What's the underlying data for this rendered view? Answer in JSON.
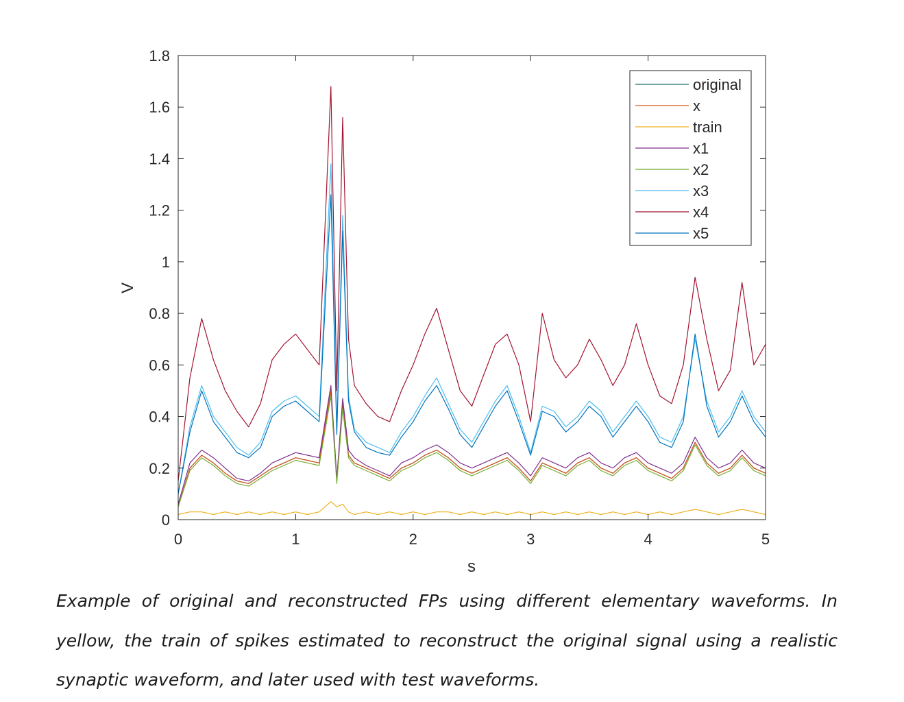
{
  "chart_data": {
    "type": "line",
    "xlabel": "s",
    "ylabel": "V",
    "xlim": [
      0,
      5
    ],
    "ylim": [
      0,
      1.8
    ],
    "xticks": [
      0,
      1,
      2,
      3,
      4,
      5
    ],
    "xtick_labels": [
      "0",
      "1",
      "2",
      "3",
      "4",
      "5"
    ],
    "yticks": [
      0,
      0.2,
      0.4,
      0.6,
      0.8,
      1,
      1.2,
      1.4,
      1.6,
      1.8
    ],
    "ytick_labels": [
      "0",
      "0.2",
      "0.4",
      "0.6",
      "0.8",
      "1",
      "1.2",
      "1.4",
      "1.6",
      "1.8"
    ],
    "legend_position": "top-right",
    "grid": false,
    "x": [
      0,
      0.1,
      0.2,
      0.3,
      0.4,
      0.5,
      0.6,
      0.7,
      0.8,
      0.9,
      1.0,
      1.1,
      1.2,
      1.3,
      1.35,
      1.4,
      1.45,
      1.5,
      1.6,
      1.7,
      1.8,
      1.9,
      2.0,
      2.1,
      2.2,
      2.3,
      2.4,
      2.5,
      2.6,
      2.7,
      2.8,
      2.9,
      3.0,
      3.1,
      3.2,
      3.3,
      3.4,
      3.5,
      3.6,
      3.7,
      3.8,
      3.9,
      4.0,
      4.1,
      4.2,
      4.3,
      4.4,
      4.5,
      4.6,
      4.7,
      4.8,
      4.9,
      5.0
    ],
    "series": [
      {
        "name": "original",
        "color": "#1f6f6f",
        "values": [
          0.05,
          0.2,
          0.25,
          0.22,
          0.18,
          0.15,
          0.14,
          0.17,
          0.2,
          0.22,
          0.24,
          0.23,
          0.22,
          0.5,
          0.15,
          0.45,
          0.25,
          0.22,
          0.2,
          0.18,
          0.16,
          0.2,
          0.22,
          0.25,
          0.27,
          0.24,
          0.2,
          0.18,
          0.2,
          0.22,
          0.24,
          0.2,
          0.15,
          0.22,
          0.2,
          0.18,
          0.22,
          0.24,
          0.2,
          0.18,
          0.22,
          0.24,
          0.2,
          0.18,
          0.16,
          0.2,
          0.3,
          0.22,
          0.18,
          0.2,
          0.25,
          0.2,
          0.18
        ]
      },
      {
        "name": "x",
        "color": "#d95319",
        "values": [
          0.05,
          0.2,
          0.25,
          0.22,
          0.18,
          0.15,
          0.14,
          0.17,
          0.2,
          0.22,
          0.24,
          0.23,
          0.22,
          0.5,
          0.15,
          0.45,
          0.25,
          0.22,
          0.2,
          0.18,
          0.16,
          0.2,
          0.22,
          0.25,
          0.27,
          0.24,
          0.2,
          0.18,
          0.2,
          0.22,
          0.24,
          0.2,
          0.15,
          0.22,
          0.2,
          0.18,
          0.22,
          0.24,
          0.2,
          0.18,
          0.22,
          0.24,
          0.2,
          0.18,
          0.16,
          0.2,
          0.3,
          0.22,
          0.18,
          0.2,
          0.25,
          0.2,
          0.18
        ]
      },
      {
        "name": "train",
        "color": "#edb120",
        "values": [
          0.02,
          0.03,
          0.03,
          0.02,
          0.03,
          0.02,
          0.03,
          0.02,
          0.03,
          0.02,
          0.03,
          0.02,
          0.03,
          0.07,
          0.05,
          0.06,
          0.03,
          0.02,
          0.03,
          0.02,
          0.03,
          0.02,
          0.03,
          0.02,
          0.03,
          0.03,
          0.02,
          0.03,
          0.02,
          0.03,
          0.02,
          0.03,
          0.02,
          0.03,
          0.02,
          0.03,
          0.02,
          0.03,
          0.02,
          0.03,
          0.02,
          0.03,
          0.02,
          0.03,
          0.02,
          0.03,
          0.04,
          0.03,
          0.02,
          0.03,
          0.04,
          0.03,
          0.02
        ]
      },
      {
        "name": "x1",
        "color": "#7e2f8e",
        "values": [
          0.06,
          0.22,
          0.27,
          0.24,
          0.2,
          0.16,
          0.15,
          0.18,
          0.22,
          0.24,
          0.26,
          0.25,
          0.24,
          0.52,
          0.16,
          0.47,
          0.27,
          0.24,
          0.21,
          0.19,
          0.17,
          0.22,
          0.24,
          0.27,
          0.29,
          0.26,
          0.22,
          0.2,
          0.22,
          0.24,
          0.26,
          0.22,
          0.17,
          0.24,
          0.22,
          0.2,
          0.24,
          0.26,
          0.22,
          0.2,
          0.24,
          0.26,
          0.22,
          0.2,
          0.18,
          0.22,
          0.32,
          0.24,
          0.2,
          0.22,
          0.27,
          0.22,
          0.2
        ]
      },
      {
        "name": "x2",
        "color": "#77ac30",
        "values": [
          0.05,
          0.19,
          0.24,
          0.21,
          0.17,
          0.14,
          0.13,
          0.16,
          0.19,
          0.21,
          0.23,
          0.22,
          0.21,
          0.48,
          0.14,
          0.43,
          0.24,
          0.21,
          0.19,
          0.17,
          0.15,
          0.19,
          0.21,
          0.24,
          0.26,
          0.23,
          0.19,
          0.17,
          0.19,
          0.21,
          0.23,
          0.19,
          0.14,
          0.21,
          0.19,
          0.17,
          0.21,
          0.23,
          0.19,
          0.17,
          0.21,
          0.23,
          0.19,
          0.17,
          0.15,
          0.19,
          0.29,
          0.21,
          0.17,
          0.19,
          0.24,
          0.19,
          0.17
        ]
      },
      {
        "name": "x3",
        "color": "#4dbeee",
        "values": [
          0.1,
          0.36,
          0.52,
          0.4,
          0.34,
          0.28,
          0.25,
          0.3,
          0.42,
          0.46,
          0.48,
          0.44,
          0.4,
          1.38,
          0.35,
          1.18,
          0.48,
          0.35,
          0.3,
          0.28,
          0.26,
          0.34,
          0.4,
          0.48,
          0.55,
          0.45,
          0.35,
          0.3,
          0.38,
          0.46,
          0.52,
          0.4,
          0.26,
          0.44,
          0.42,
          0.36,
          0.4,
          0.46,
          0.42,
          0.34,
          0.4,
          0.46,
          0.4,
          0.32,
          0.3,
          0.4,
          0.7,
          0.46,
          0.34,
          0.4,
          0.5,
          0.4,
          0.34
        ]
      },
      {
        "name": "x4",
        "color": "#a2142f",
        "values": [
          0.15,
          0.55,
          0.78,
          0.62,
          0.5,
          0.42,
          0.36,
          0.45,
          0.62,
          0.68,
          0.72,
          0.66,
          0.6,
          1.68,
          0.5,
          1.56,
          0.7,
          0.52,
          0.45,
          0.4,
          0.38,
          0.5,
          0.6,
          0.72,
          0.82,
          0.66,
          0.5,
          0.44,
          0.56,
          0.68,
          0.72,
          0.6,
          0.38,
          0.8,
          0.62,
          0.55,
          0.6,
          0.7,
          0.62,
          0.52,
          0.6,
          0.76,
          0.6,
          0.48,
          0.45,
          0.6,
          0.94,
          0.7,
          0.5,
          0.58,
          0.92,
          0.6,
          0.68
        ]
      },
      {
        "name": "x5",
        "color": "#0072bd",
        "values": [
          0.1,
          0.34,
          0.5,
          0.38,
          0.32,
          0.26,
          0.24,
          0.28,
          0.4,
          0.44,
          0.46,
          0.42,
          0.38,
          1.26,
          0.33,
          1.12,
          0.46,
          0.34,
          0.28,
          0.26,
          0.25,
          0.32,
          0.38,
          0.46,
          0.52,
          0.43,
          0.33,
          0.28,
          0.36,
          0.44,
          0.5,
          0.38,
          0.25,
          0.42,
          0.4,
          0.34,
          0.38,
          0.44,
          0.4,
          0.32,
          0.38,
          0.44,
          0.38,
          0.3,
          0.28,
          0.38,
          0.72,
          0.44,
          0.32,
          0.38,
          0.48,
          0.38,
          0.32
        ]
      }
    ]
  },
  "caption": "Example of original and reconstructed FPs using different elementary waveforms. In yellow, the train of spikes estimated to reconstruct the original signal using a realistic synaptic waveform, and later used with test waveforms."
}
